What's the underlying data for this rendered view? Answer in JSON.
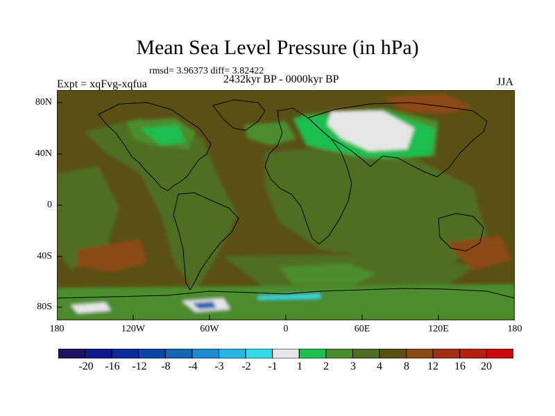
{
  "title": "Mean Sea Level Pressure (in hPa)",
  "stats_line": "rmsd= 3.96373  diff= 3.82422",
  "period_line": "2432kyr BP - 0000kyr BP",
  "experiment_line": "Expt = xqFvg-xqfua",
  "season": "JJA",
  "axes": {
    "y_ticks": [
      "80N",
      "40N",
      "0",
      "40S",
      "80S"
    ],
    "x_ticks": [
      "180",
      "120W",
      "60W",
      "0",
      "60E",
      "120E",
      "180"
    ]
  },
  "colorbar": {
    "labels": [
      "-20",
      "-16",
      "-12",
      "-8",
      "-4",
      "-3",
      "-2",
      "-1",
      "1",
      "2",
      "3",
      "4",
      "8",
      "12",
      "16",
      "20"
    ],
    "colors": [
      "#1e1064",
      "#101a8c",
      "#0a2c96",
      "#0a46a6",
      "#1464b4",
      "#1e8cd2",
      "#28b4e6",
      "#32dce8",
      "#e6e6e6",
      "#1ebe50",
      "#4b8c2d",
      "#4f6e20",
      "#5a5014",
      "#8a4a14",
      "#a0300f",
      "#b4200f",
      "#c80c0c"
    ]
  },
  "map_colors": {
    "background": "#5a5014",
    "olive": "#4f6e20",
    "green": "#4b8c2d",
    "bright_green": "#1ebe50",
    "white": "#e6e6e6",
    "brown": "#8a4a14",
    "cyan": "#32dce8",
    "blue": "#1464b4"
  }
}
